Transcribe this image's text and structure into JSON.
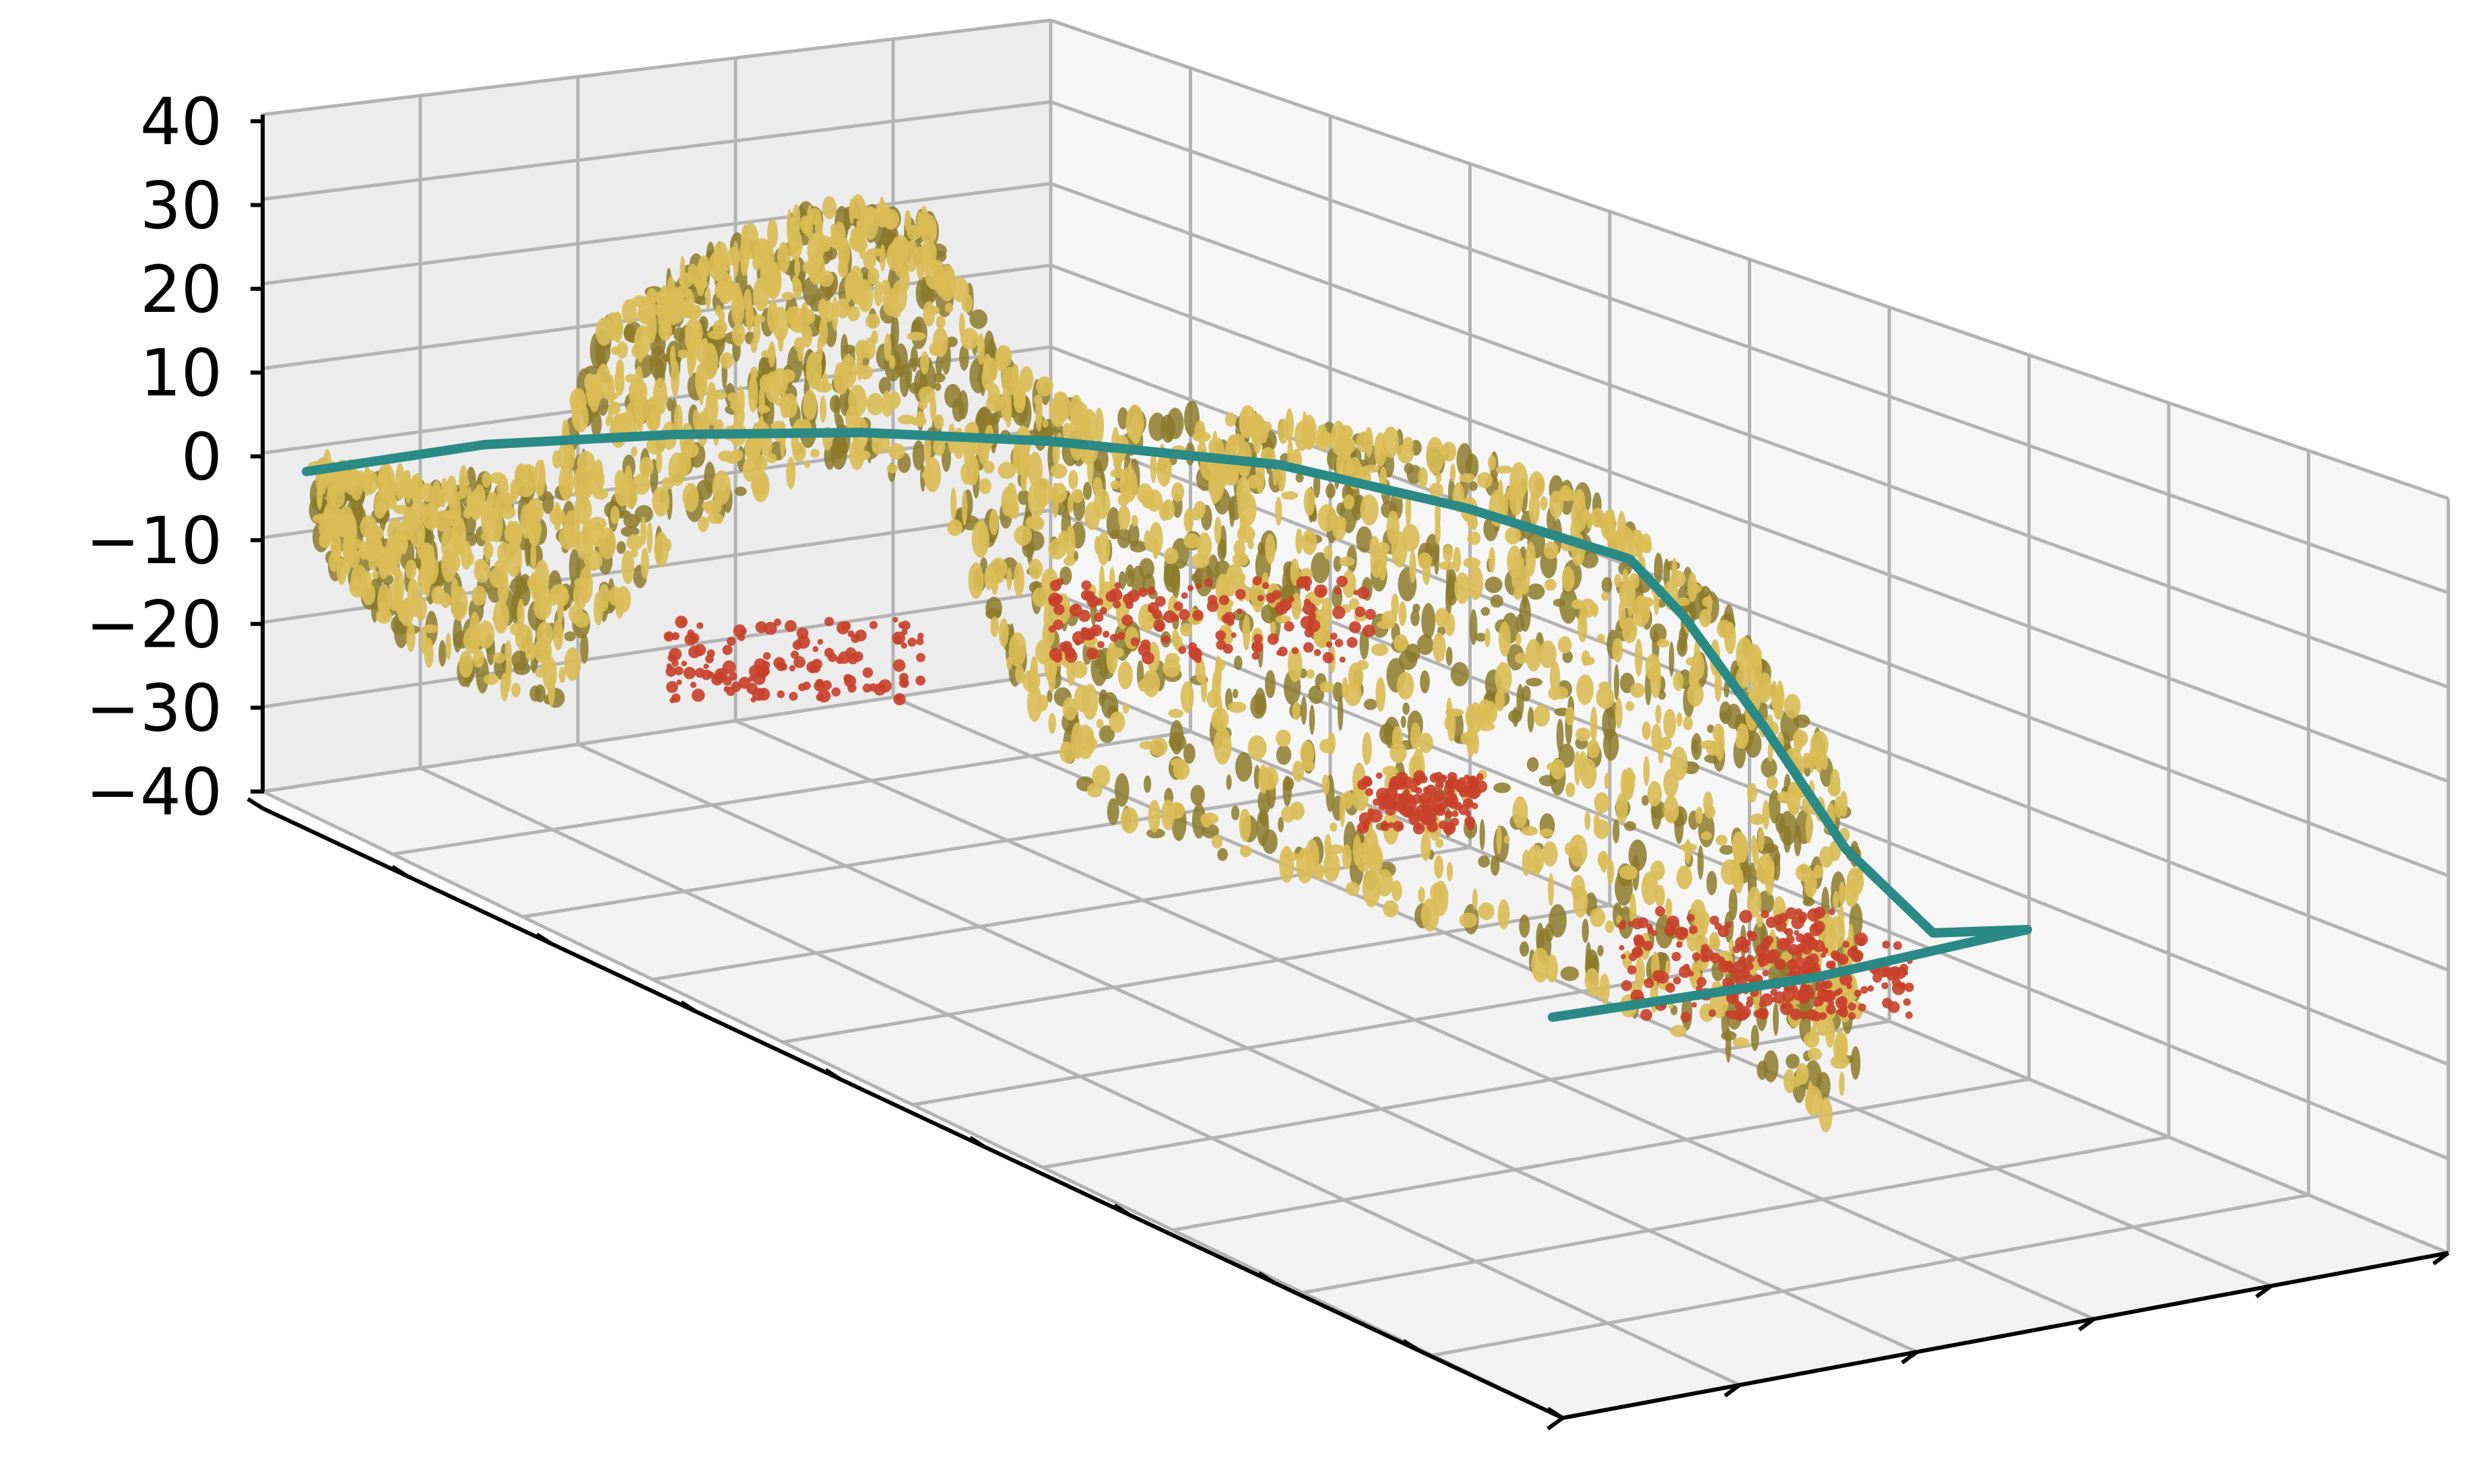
{
  "colors": {
    "trajectory": "#2a8a86",
    "point_cloud_light": "#d9bd55",
    "point_cloud_dark": "#8c7a2a",
    "outlier_points": "#c8402a",
    "pane_fill": "#f2f2f2",
    "grid": "#b3b3b3"
  },
  "chart_data": {
    "type": "scatter",
    "projection": "3d",
    "title": "",
    "xlabel": "",
    "ylabel": "",
    "zlabel": "",
    "zlim": [
      -40,
      40
    ],
    "z_ticks": [
      "40",
      "30",
      "20",
      "10",
      "0",
      "−10",
      "−20",
      "−30",
      "−40"
    ],
    "x_tick_labels_visible": false,
    "y_tick_labels_visible": false,
    "grid": true,
    "legend": "none",
    "series": [
      {
        "kind": "line",
        "color": "#2a8a86",
        "description": "",
        "z_range": [
          -5,
          0
        ]
      },
      {
        "kind": "scatter",
        "color": "#d9bd55",
        "z_range": [
          -35,
          37
        ]
      },
      {
        "kind": "scatter",
        "color": "#c8402a",
        "z_range": [
          -30,
          -15
        ]
      }
    ]
  }
}
